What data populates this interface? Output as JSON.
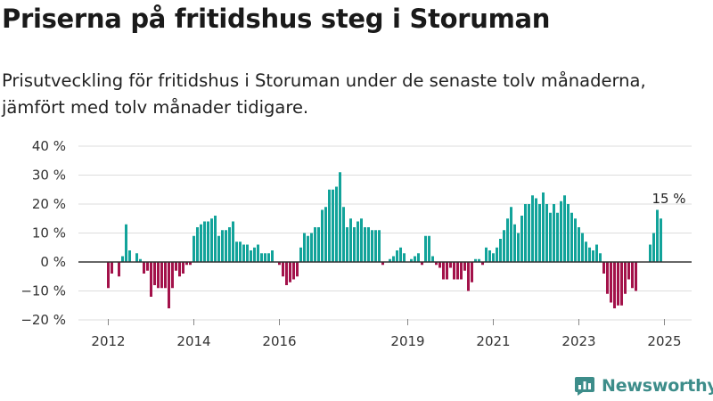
{
  "header": {
    "title": "Priserna på fritidshus steg i Storuman",
    "subtitle": "Prisutveckling för fritidshus i Storuman under de senaste tolv månaderna, jämfört med tolv månader tidigare."
  },
  "brand": {
    "name": "Newsworthy",
    "icon": "newsworthy-logo-icon",
    "color": "#3d8d8a"
  },
  "colors": {
    "positive": "#12a39a",
    "negative": "#a3124a"
  },
  "chart_data": {
    "type": "bar",
    "x_start": "2012-01",
    "x_end": "2025-02",
    "x_ticks": [
      {
        "label": "2012",
        "date": "2012-01"
      },
      {
        "label": "2014",
        "date": "2014-01"
      },
      {
        "label": "2016",
        "date": "2016-01"
      },
      {
        "label": "2019",
        "date": "2019-01"
      },
      {
        "label": "2021",
        "date": "2021-01"
      },
      {
        "label": "2023",
        "date": "2023-01"
      },
      {
        "label": "2025",
        "date": "2025-01"
      }
    ],
    "ylim": [
      -20,
      40
    ],
    "y_ticks": [
      {
        "value": 40,
        "label": "40 %"
      },
      {
        "value": 30,
        "label": "30 %"
      },
      {
        "value": 20,
        "label": "20 %"
      },
      {
        "value": 10,
        "label": "10 %"
      },
      {
        "value": 0,
        "label": "0 %"
      },
      {
        "value": -10,
        "label": "−10 %"
      },
      {
        "value": -20,
        "label": "−20 %"
      }
    ],
    "grid": true,
    "annotation": {
      "text": "15 %",
      "date": "2025-01"
    },
    "points": [
      {
        "date": "2012-01",
        "value": -9
      },
      {
        "date": "2012-02",
        "value": -4
      },
      {
        "date": "2012-04",
        "value": -5
      },
      {
        "date": "2012-05",
        "value": 2
      },
      {
        "date": "2012-06",
        "value": 13
      },
      {
        "date": "2012-07",
        "value": 4
      },
      {
        "date": "2012-09",
        "value": 3
      },
      {
        "date": "2012-10",
        "value": 1
      },
      {
        "date": "2012-11",
        "value": -4
      },
      {
        "date": "2012-12",
        "value": -3
      },
      {
        "date": "2013-01",
        "value": -12
      },
      {
        "date": "2013-02",
        "value": -8
      },
      {
        "date": "2013-03",
        "value": -9
      },
      {
        "date": "2013-04",
        "value": -9
      },
      {
        "date": "2013-05",
        "value": -9
      },
      {
        "date": "2013-06",
        "value": -16
      },
      {
        "date": "2013-07",
        "value": -9
      },
      {
        "date": "2013-08",
        "value": -3
      },
      {
        "date": "2013-09",
        "value": -5
      },
      {
        "date": "2013-10",
        "value": -4
      },
      {
        "date": "2013-11",
        "value": -1
      },
      {
        "date": "2013-12",
        "value": -1
      },
      {
        "date": "2014-01",
        "value": 9
      },
      {
        "date": "2014-02",
        "value": 12
      },
      {
        "date": "2014-03",
        "value": 13
      },
      {
        "date": "2014-04",
        "value": 14
      },
      {
        "date": "2014-05",
        "value": 14
      },
      {
        "date": "2014-06",
        "value": 15
      },
      {
        "date": "2014-07",
        "value": 16
      },
      {
        "date": "2014-08",
        "value": 9
      },
      {
        "date": "2014-09",
        "value": 11
      },
      {
        "date": "2014-10",
        "value": 11
      },
      {
        "date": "2014-11",
        "value": 12
      },
      {
        "date": "2014-12",
        "value": 14
      },
      {
        "date": "2015-01",
        "value": 7
      },
      {
        "date": "2015-02",
        "value": 7
      },
      {
        "date": "2015-03",
        "value": 6
      },
      {
        "date": "2015-04",
        "value": 6
      },
      {
        "date": "2015-05",
        "value": 4
      },
      {
        "date": "2015-06",
        "value": 5
      },
      {
        "date": "2015-07",
        "value": 6
      },
      {
        "date": "2015-08",
        "value": 3
      },
      {
        "date": "2015-09",
        "value": 3
      },
      {
        "date": "2015-10",
        "value": 3
      },
      {
        "date": "2015-11",
        "value": 4
      },
      {
        "date": "2016-01",
        "value": -1
      },
      {
        "date": "2016-02",
        "value": -5
      },
      {
        "date": "2016-03",
        "value": -8
      },
      {
        "date": "2016-04",
        "value": -7
      },
      {
        "date": "2016-05",
        "value": -6
      },
      {
        "date": "2016-06",
        "value": -5
      },
      {
        "date": "2016-07",
        "value": 5
      },
      {
        "date": "2016-08",
        "value": 10
      },
      {
        "date": "2016-09",
        "value": 9
      },
      {
        "date": "2016-10",
        "value": 10
      },
      {
        "date": "2016-11",
        "value": 12
      },
      {
        "date": "2016-12",
        "value": 12
      },
      {
        "date": "2017-01",
        "value": 18
      },
      {
        "date": "2017-02",
        "value": 19
      },
      {
        "date": "2017-03",
        "value": 25
      },
      {
        "date": "2017-04",
        "value": 25
      },
      {
        "date": "2017-05",
        "value": 26
      },
      {
        "date": "2017-06",
        "value": 31
      },
      {
        "date": "2017-07",
        "value": 19
      },
      {
        "date": "2017-08",
        "value": 12
      },
      {
        "date": "2017-09",
        "value": 15
      },
      {
        "date": "2017-10",
        "value": 12
      },
      {
        "date": "2017-11",
        "value": 14
      },
      {
        "date": "2017-12",
        "value": 15
      },
      {
        "date": "2018-01",
        "value": 12
      },
      {
        "date": "2018-02",
        "value": 12
      },
      {
        "date": "2018-03",
        "value": 11
      },
      {
        "date": "2018-04",
        "value": 11
      },
      {
        "date": "2018-05",
        "value": 11
      },
      {
        "date": "2018-06",
        "value": -1
      },
      {
        "date": "2018-08",
        "value": 1
      },
      {
        "date": "2018-09",
        "value": 2
      },
      {
        "date": "2018-10",
        "value": 4
      },
      {
        "date": "2018-11",
        "value": 5
      },
      {
        "date": "2018-12",
        "value": 3
      },
      {
        "date": "2019-02",
        "value": 1
      },
      {
        "date": "2019-03",
        "value": 2
      },
      {
        "date": "2019-04",
        "value": 3
      },
      {
        "date": "2019-05",
        "value": -1
      },
      {
        "date": "2019-06",
        "value": 9
      },
      {
        "date": "2019-07",
        "value": 9
      },
      {
        "date": "2019-08",
        "value": 2
      },
      {
        "date": "2019-09",
        "value": -1
      },
      {
        "date": "2019-10",
        "value": -2
      },
      {
        "date": "2019-11",
        "value": -6
      },
      {
        "date": "2019-12",
        "value": -6
      },
      {
        "date": "2020-01",
        "value": -2
      },
      {
        "date": "2020-02",
        "value": -6
      },
      {
        "date": "2020-03",
        "value": -6
      },
      {
        "date": "2020-04",
        "value": -6
      },
      {
        "date": "2020-05",
        "value": -3
      },
      {
        "date": "2020-06",
        "value": -10
      },
      {
        "date": "2020-07",
        "value": -7
      },
      {
        "date": "2020-08",
        "value": 1
      },
      {
        "date": "2020-09",
        "value": 1
      },
      {
        "date": "2020-10",
        "value": -1
      },
      {
        "date": "2020-11",
        "value": 5
      },
      {
        "date": "2020-12",
        "value": 4
      },
      {
        "date": "2021-01",
        "value": 3
      },
      {
        "date": "2021-02",
        "value": 5
      },
      {
        "date": "2021-03",
        "value": 8
      },
      {
        "date": "2021-04",
        "value": 11
      },
      {
        "date": "2021-05",
        "value": 15
      },
      {
        "date": "2021-06",
        "value": 19
      },
      {
        "date": "2021-07",
        "value": 13
      },
      {
        "date": "2021-08",
        "value": 10
      },
      {
        "date": "2021-09",
        "value": 16
      },
      {
        "date": "2021-10",
        "value": 20
      },
      {
        "date": "2021-11",
        "value": 20
      },
      {
        "date": "2021-12",
        "value": 23
      },
      {
        "date": "2022-01",
        "value": 22
      },
      {
        "date": "2022-02",
        "value": 20
      },
      {
        "date": "2022-03",
        "value": 24
      },
      {
        "date": "2022-04",
        "value": 20
      },
      {
        "date": "2022-05",
        "value": 17
      },
      {
        "date": "2022-06",
        "value": 20
      },
      {
        "date": "2022-07",
        "value": 17
      },
      {
        "date": "2022-08",
        "value": 21
      },
      {
        "date": "2022-09",
        "value": 23
      },
      {
        "date": "2022-10",
        "value": 20
      },
      {
        "date": "2022-11",
        "value": 17
      },
      {
        "date": "2022-12",
        "value": 15
      },
      {
        "date": "2023-01",
        "value": 12
      },
      {
        "date": "2023-02",
        "value": 10
      },
      {
        "date": "2023-03",
        "value": 7
      },
      {
        "date": "2023-04",
        "value": 5
      },
      {
        "date": "2023-05",
        "value": 4
      },
      {
        "date": "2023-06",
        "value": 6
      },
      {
        "date": "2023-07",
        "value": 3
      },
      {
        "date": "2023-08",
        "value": -4
      },
      {
        "date": "2023-09",
        "value": -11
      },
      {
        "date": "2023-10",
        "value": -14
      },
      {
        "date": "2023-11",
        "value": -16
      },
      {
        "date": "2023-12",
        "value": -15
      },
      {
        "date": "2024-01",
        "value": -15
      },
      {
        "date": "2024-02",
        "value": -11
      },
      {
        "date": "2024-03",
        "value": -6
      },
      {
        "date": "2024-04",
        "value": -9
      },
      {
        "date": "2024-05",
        "value": -10
      },
      {
        "date": "2024-09",
        "value": 6
      },
      {
        "date": "2024-10",
        "value": 10
      },
      {
        "date": "2024-11",
        "value": 18
      },
      {
        "date": "2024-12",
        "value": 15
      }
    ]
  }
}
